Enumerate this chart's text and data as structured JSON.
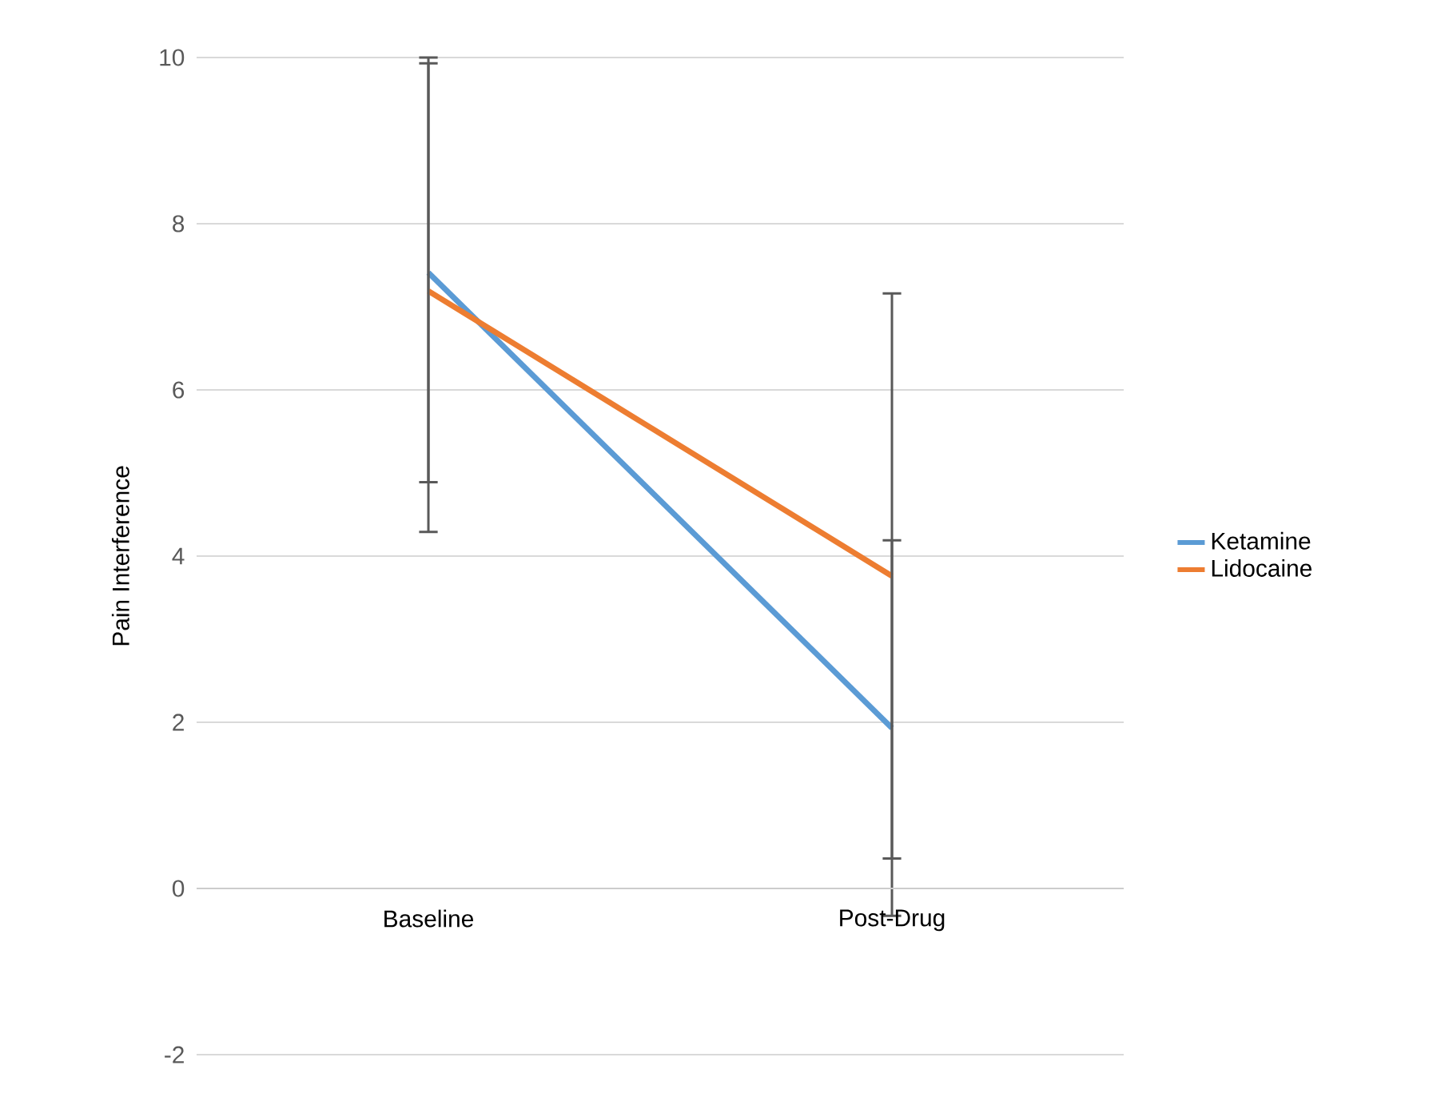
{
  "chart_data": {
    "type": "line",
    "ylabel": "Pain Interference",
    "categories": [
      "Baseline",
      "Post-Drug"
    ],
    "series": [
      {
        "name": "Ketamine",
        "color": "#5b9bd5",
        "values": [
          7.41,
          1.93
        ],
        "errors": [
          2.52,
          2.26
        ]
      },
      {
        "name": "Lidocaine",
        "color": "#ed7d31",
        "values": [
          7.19,
          3.76
        ],
        "errors": [
          [
            4.29,
            10
          ],
          3.4
        ]
      }
    ],
    "ylim": [
      -2,
      10
    ],
    "yticks": [
      -2,
      0,
      2,
      4,
      6,
      8,
      10
    ],
    "grid": "y",
    "legend": "right",
    "marker": "none",
    "line_style": "solid"
  }
}
